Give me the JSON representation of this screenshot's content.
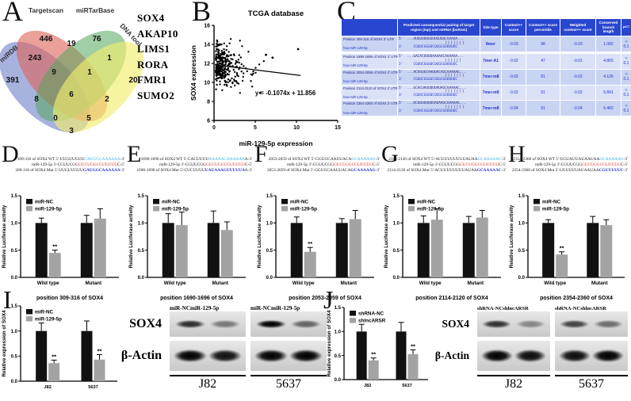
{
  "panel_a": {
    "letter": "A",
    "sets": [
      {
        "name": "miRDB",
        "color": "#7282cc"
      },
      {
        "name": "Targetscan",
        "color": "#dd6257"
      },
      {
        "name": "miRTarBase",
        "color": "#55a55b"
      },
      {
        "name": "DNA tool",
        "color": "#f1ed6e"
      }
    ],
    "regions": [
      {
        "value": "446",
        "region": "Targetscan only"
      },
      {
        "value": "76",
        "region": "miRTarBase only"
      },
      {
        "value": "391",
        "region": "miRDB only"
      },
      {
        "value": "20",
        "region": "DNA tool only"
      },
      {
        "value": "243",
        "region": "miRDB + Targetscan"
      },
      {
        "value": "19",
        "region": "Targetscan + miRTarBase"
      },
      {
        "value": "1",
        "region": "miRTarBase + DNA tool"
      },
      {
        "value": "9",
        "region": "miRDB + Targetscan + miRTarBase"
      },
      {
        "value": "1",
        "region": "Targetscan + miRTarBase + DNA tool"
      },
      {
        "value": "8",
        "region": "miRDB + miRTarBase"
      },
      {
        "value": "2",
        "region": "Targetscan + DNA tool"
      },
      {
        "value": "6",
        "region": "all four"
      },
      {
        "value": "0",
        "region": "miRDB + miRTarBase + DNA tool"
      },
      {
        "value": "5",
        "region": "miRDB + Targetscan + DNA tool"
      },
      {
        "value": "3",
        "region": "miRDB + DNA tool"
      }
    ],
    "genes": [
      "SOX4",
      "AKAP10",
      "LIMS1",
      "RORA",
      "FMR1",
      "SUMO2"
    ]
  },
  "panel_b": {
    "letter": "B"
  },
  "panel_c": {
    "letter": "C",
    "table": {
      "headers": [
        "",
        "Predicted consequential pairing of target region (top) and miRNA (bottom)",
        "Site type",
        "Context++ score",
        "Context++ score percentile",
        "Weighted context++ score",
        "Conserved branch length",
        "PCT"
      ],
      "mirna_name": "hsa-miR-129-5p",
      "mirna_seq": "3'     CGUUCGGGUCUGGCGUUUUUC",
      "rows": [
        {
          "position": "Position 309-316 of SOX4 3' UTR",
          "target_seq": "5'  ...AUGUUUUUGUUGUGUCAAAAA...",
          "bars": "|||||||",
          "site_type": "8mer",
          "context_score": "-0.03",
          "percentile": "98",
          "weighted_score": "-0.03",
          "branch_length": "1.082",
          "pct": "< 0.1"
        },
        {
          "position": "Position 1690-1696 of SOX4 3' UTR",
          "target_seq": "5'  ...GACACUUUUAAAAACAAAAAA...",
          "bars": "||||||",
          "site_type": "7mer-A1",
          "context_score": "-0.02",
          "percentile": "47",
          "weighted_score": "-0.01",
          "branch_length": "4.865",
          "pct": "< 0.1"
        },
        {
          "position": "Position 2053-2059 of SOX4 3' UTR",
          "target_seq": "5'  ...ACUGUGCAAUUACAGCAAAAAG...",
          "bars": "|||||||",
          "site_type": "7mer-m8",
          "context_score": "-0.02",
          "percentile": "81",
          "weighted_score": "-0.02",
          "branch_length": "4.126",
          "pct": "< 0.1"
        },
        {
          "position": "Position 2114-2120 of SOX4 3' UTR",
          "target_seq": "5'  ...GCACUAUUUUUAUAGCAAAAAC...",
          "bars": "|||||||",
          "site_type": "7mer-m8",
          "context_score": "-0.02",
          "percentile": "91",
          "weighted_score": "-0.02",
          "branch_length": "5.841",
          "pct": "< 0.1"
        },
        {
          "position": "Position 2354-2360 of SOX4 3' UTR",
          "target_seq": "5'  ...UCUGUGUUUUAUAAGCAAAAAG...",
          "bars": "|||||||",
          "site_type": "7mer-m8",
          "context_score": "-0.04",
          "percentile": "91",
          "weighted_score": "-0.04",
          "branch_length": "6.482",
          "pct": "< 0.1"
        }
      ]
    }
  },
  "seq_colors": {
    "wt": "#35aee0",
    "mir": "#d63226",
    "mut": "#2230cc"
  },
  "panel_d": {
    "letter": "D",
    "sequences": {
      "wt": {
        "pre": "309-316 of SOX4 WT 5'-UUGUUGUU",
        "hl": "CAUGGCAAAAAA",
        "suf": "-3'"
      },
      "mir": {
        "pre": "miR-129-5p 3'-CGUUCGG",
        "hl": "GUCUGGCGUUUUU",
        "suf": "C-5'"
      },
      "mut": {
        "pre": "309-316 of SOX4 Mut 5'-UUGUUGUU",
        "hl": "GAUGGCAAAAAA",
        "suf": "-3'"
      }
    }
  },
  "panel_e": {
    "letter": "E",
    "sequences": {
      "wt": {
        "pre": "1690-1696 of SOX4 WT 5'-CACUUUU",
        "hl": "AAAAACAAAAAA",
        "suf": "A-3'"
      },
      "mir": {
        "pre": "miR-129-5p 3'-CGUUCGG",
        "hl": "GUCUGGCGUUUUU",
        "suf": "C-5'"
      },
      "mut": {
        "pre": "1690-1696 of SOX4 Mut 5'-CUCUUUU",
        "hl": "UAUAAAGUUUUUA",
        "suf": "A-3'"
      }
    }
  },
  "panel_f": {
    "letter": "F",
    "sequences": {
      "wt": {
        "pre": "2053-2059 of SOX4 WT 5'-GGUGCAAUUACA",
        "hl": "GCAAAAAG",
        "suf": "-3'"
      },
      "mir": {
        "pre": "miR-129-5p 3'-CGUUCGG",
        "hl": "GUCUGGCGUUUUU",
        "suf": "C-5'"
      },
      "mut": {
        "pre": "2053-2059 of SOX4 Mut 5'-GGUGCAAUUACA",
        "hl": "GCAAAAAG",
        "suf": "-3'"
      }
    }
  },
  "panel_g": {
    "letter": "G",
    "sequences": {
      "wt": {
        "pre": "2114-2120 of SOX4 WT 5'-ACUUUUUUUUAUAA",
        "hl": "GCAAAAAC",
        "suf": "-3'"
      },
      "mir": {
        "pre": "miR-129-5p 3'-CGUUCGG",
        "hl": "GUCUGGCGUUUUU",
        "suf": "C-5'"
      },
      "mut": {
        "pre": "2114-2120 of SOX4 Mut 5'-ACUUUUUUUUAUAA",
        "hl": "GCAAAAAC",
        "suf": "-3'"
      }
    }
  },
  "panel_h": {
    "letter": "H",
    "sequences": {
      "wt": {
        "pre": "2354-2360 of SOX4 WT 5'-UGUAUUAUAAUAA",
        "hl": "GCAAAAAG",
        "suf": "-3'"
      },
      "mir": {
        "pre": "miR-129-5p 3'-CGUUCGG",
        "hl": "GUCUGGCGUUUUU",
        "suf": "C-5'"
      },
      "mut": {
        "pre": "2354-2360 of SOX4 Mut 5'-UGUUUUAUAAUAA",
        "hl": "CGUUUUUC",
        "suf": "-3'"
      }
    }
  },
  "panel_i": {
    "letter": "I",
    "row_labels": [
      "SOX4",
      "β-Actin"
    ],
    "groups": [
      {
        "name": "J82",
        "lane_labels": [
          "miR-NC",
          "miR-129-5p"
        ],
        "sox4_bands": [
          0.8,
          0.45
        ],
        "actin_bands": [
          1.0,
          0.92
        ]
      },
      {
        "name": "5637",
        "lane_labels": [
          "miR-NC",
          "miR-129-5p"
        ],
        "sox4_bands": [
          1.0,
          0.55
        ],
        "actin_bands": [
          1.0,
          1.0
        ]
      }
    ]
  },
  "panel_j": {
    "letter": "J",
    "row_labels": [
      "SOX4",
      "β-Actin"
    ],
    "groups": [
      {
        "name": "J82",
        "lane_labels": [
          "shRNA-NC",
          "shlncARSR"
        ],
        "sox4_bands": [
          0.78,
          0.38
        ],
        "actin_bands": [
          1.0,
          0.95
        ]
      },
      {
        "name": "5637",
        "lane_labels": [
          "shRNA-NC",
          "shlncARSR"
        ],
        "sox4_bands": [
          0.7,
          0.5
        ],
        "actin_bands": [
          0.95,
          1.0
        ]
      }
    ]
  },
  "chart_data": [
    {
      "id": "b",
      "type": "scatter",
      "title": "TCGA  database",
      "xlabel": "miR-129-5p  expression",
      "ylabel": "SOX4 expression",
      "xlim": [
        0,
        15
      ],
      "ylim": [
        6,
        16
      ],
      "xticks": [
        0,
        5,
        10,
        15
      ],
      "yticks": [
        6,
        8,
        10,
        12,
        14,
        16
      ],
      "regression_label": "y = -0.1074x + 11.856",
      "slope": -0.1074,
      "intercept": 11.856,
      "line_x": [
        0.3,
        10.5
      ],
      "n_points": 300,
      "seed": 42,
      "points_summary": "dense cluster of tumor samples at x 0-3, y 9-14, sparse tail to x 10.5",
      "outliers": [
        [
          10.2,
          13.5
        ],
        [
          7.1,
          12.6
        ],
        [
          6.3,
          12.9
        ],
        [
          5.6,
          8.9
        ]
      ]
    },
    {
      "id": "d",
      "type": "bar",
      "ylabel": "Relative Luciferase activity",
      "xlabel": "position 309-316 of SOX4",
      "categories": [
        "Wild type",
        "Mutant"
      ],
      "ylim": [
        0,
        1.5
      ],
      "yticks": [
        "0.0",
        "0.5",
        "1.0",
        "1.5"
      ],
      "series": [
        {
          "name": "miR-NC",
          "color": "#111111",
          "values": [
            1.0,
            1.0
          ],
          "errors": [
            0.09,
            0.14
          ]
        },
        {
          "name": "miR-129-5p",
          "color": "#a3a3a3",
          "values": [
            0.45,
            1.08
          ],
          "errors": [
            0.05,
            0.18
          ]
        }
      ],
      "sig": [
        {
          "category": 0,
          "series": 1,
          "label": "**"
        }
      ]
    },
    {
      "id": "e",
      "type": "bar",
      "ylabel": "Relative Luciferase activity",
      "xlabel": "position 1690-1696 of SOX4",
      "categories": [
        "Wild type",
        "Mutant"
      ],
      "ylim": [
        0,
        1.5
      ],
      "yticks": [
        "0.0",
        "0.5",
        "1.0",
        "1.5"
      ],
      "series": [
        {
          "name": "miR-NC",
          "color": "#111111",
          "values": [
            1.0,
            1.0
          ],
          "errors": [
            0.17,
            0.22
          ]
        },
        {
          "name": "miR-129-5p",
          "color": "#a3a3a3",
          "values": [
            0.96,
            0.87
          ],
          "errors": [
            0.24,
            0.15
          ]
        }
      ],
      "sig": []
    },
    {
      "id": "f",
      "type": "bar",
      "ylabel": "Relative Luciferase activity",
      "xlabel": "position 2053-2059 of SOX4",
      "categories": [
        "Wild type",
        "Mutant"
      ],
      "ylim": [
        0,
        1.5
      ],
      "yticks": [
        "0.0",
        "0.5",
        "1.0",
        "1.5"
      ],
      "series": [
        {
          "name": "miR-NC",
          "color": "#111111",
          "values": [
            1.0,
            1.0
          ],
          "errors": [
            0.11,
            0.08
          ]
        },
        {
          "name": "miR-129-5p",
          "color": "#a3a3a3",
          "values": [
            0.47,
            1.07
          ],
          "errors": [
            0.08,
            0.16
          ]
        }
      ],
      "sig": [
        {
          "category": 0,
          "series": 1,
          "label": "**"
        }
      ]
    },
    {
      "id": "g",
      "type": "bar",
      "ylabel": "Relative Luciferase activity",
      "xlabel": "position 2114-2120 of SOX4",
      "categories": [
        "Wild type",
        "Mutant"
      ],
      "ylim": [
        0,
        1.5
      ],
      "yticks": [
        "0.0",
        "0.5",
        "1.0",
        "1.5"
      ],
      "series": [
        {
          "name": "miR-NC",
          "color": "#111111",
          "values": [
            1.0,
            1.0
          ],
          "errors": [
            0.13,
            0.12
          ]
        },
        {
          "name": "miR-129-5p",
          "color": "#a3a3a3",
          "values": [
            1.06,
            1.1
          ],
          "errors": [
            0.2,
            0.13
          ]
        }
      ],
      "sig": []
    },
    {
      "id": "h",
      "type": "bar",
      "ylabel": "Relative Luciferase activity",
      "xlabel": "position 2354-2360 of SOX4",
      "categories": [
        "Wild type",
        "Mutant"
      ],
      "ylim": [
        0,
        1.5
      ],
      "yticks": [
        "0.0",
        "0.5",
        "1.0",
        "1.5"
      ],
      "series": [
        {
          "name": "miR-NC",
          "color": "#111111",
          "values": [
            1.0,
            1.0
          ],
          "errors": [
            0.06,
            0.12
          ]
        },
        {
          "name": "miR-129-5p",
          "color": "#a3a3a3",
          "values": [
            0.42,
            0.96
          ],
          "errors": [
            0.05,
            0.1
          ]
        }
      ],
      "sig": [
        {
          "category": 0,
          "series": 1,
          "label": "**"
        }
      ]
    },
    {
      "id": "i",
      "type": "bar",
      "ylabel": "Relative expression of  SOX4",
      "xlabel": "",
      "categories": [
        "J82",
        "5637"
      ],
      "ylim": [
        0,
        1.5
      ],
      "yticks": [
        "0.0",
        "0.5",
        "1.0",
        "1.5"
      ],
      "series": [
        {
          "name": "miR-NC",
          "color": "#111111",
          "values": [
            1.0,
            1.0
          ],
          "errors": [
            0.16,
            0.2
          ]
        },
        {
          "name": "miR-129-5p",
          "color": "#a3a3a3",
          "values": [
            0.36,
            0.43
          ],
          "errors": [
            0.06,
            0.1
          ]
        }
      ],
      "sig": [
        {
          "category": 0,
          "series": 1,
          "label": "**"
        },
        {
          "category": 1,
          "series": 1,
          "label": "**"
        }
      ]
    },
    {
      "id": "j",
      "type": "bar",
      "ylabel": "Relative expression of  SOX4",
      "xlabel": "",
      "categories": [
        "J82",
        "5637"
      ],
      "ylim": [
        0,
        1.5
      ],
      "yticks": [
        "0.0",
        "0.5",
        "1.0",
        "1.5"
      ],
      "series": [
        {
          "name": "shRNA-NC",
          "color": "#111111",
          "values": [
            1.0,
            1.0
          ],
          "errors": [
            0.15,
            0.19
          ]
        },
        {
          "name": "shlncARSR",
          "color": "#a3a3a3",
          "values": [
            0.4,
            0.53
          ],
          "errors": [
            0.05,
            0.09
          ]
        }
      ],
      "sig": [
        {
          "category": 0,
          "series": 1,
          "label": "**"
        },
        {
          "category": 1,
          "series": 1,
          "label": "**"
        }
      ]
    }
  ]
}
